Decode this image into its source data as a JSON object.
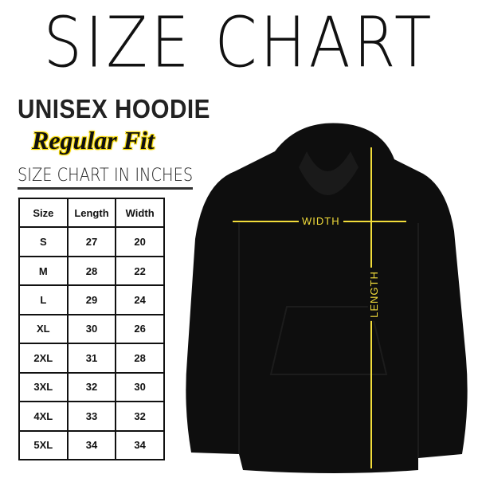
{
  "title": "SIZE CHART",
  "product": "UNISEX HOODIE",
  "fit": "Regular Fit",
  "subtitle": "SIZE CHART IN INCHES",
  "table": {
    "headers": [
      "Size",
      "Length",
      "Width"
    ],
    "rows": [
      [
        "S",
        "27",
        "20"
      ],
      [
        "M",
        "28",
        "22"
      ],
      [
        "L",
        "29",
        "24"
      ],
      [
        "XL",
        "30",
        "26"
      ],
      [
        "2XL",
        "31",
        "28"
      ],
      [
        "3XL",
        "32",
        "30"
      ],
      [
        "4XL",
        "33",
        "32"
      ],
      [
        "5XL",
        "34",
        "34"
      ]
    ]
  },
  "diagram": {
    "width_label": "WIDTH",
    "length_label": "LENGTH",
    "line_color": "#f2dc3a",
    "garment_color": "#0e0e0e"
  }
}
